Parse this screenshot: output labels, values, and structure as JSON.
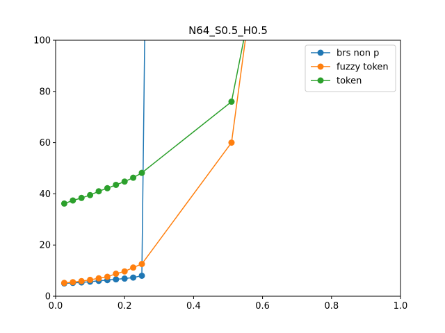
{
  "chart_data": {
    "type": "line",
    "title": "N64_S0.5_H0.5",
    "xlabel": "",
    "ylabel": "",
    "xlim": [
      0,
      1
    ],
    "ylim": [
      0,
      100
    ],
    "xticks": [
      "0.0",
      "0.2",
      "0.4",
      "0.6",
      "0.8",
      "1.0"
    ],
    "yticks": [
      "0",
      "20",
      "40",
      "60",
      "80",
      "100"
    ],
    "grid": false,
    "legend_position": "top-right",
    "series": [
      {
        "name": "brs non p",
        "color": "#1f77b4",
        "x": [
          0.025,
          0.05,
          0.075,
          0.1,
          0.125,
          0.15,
          0.175,
          0.2,
          0.225,
          0.25,
          0.26
        ],
        "y": [
          5.0,
          5.2,
          5.4,
          5.7,
          6.0,
          6.3,
          6.6,
          6.9,
          7.3,
          8.0,
          120.0
        ]
      },
      {
        "name": "fuzzy token",
        "color": "#ff7f0e",
        "x": [
          0.025,
          0.05,
          0.075,
          0.1,
          0.125,
          0.15,
          0.175,
          0.2,
          0.225,
          0.25,
          0.51,
          0.56
        ],
        "y": [
          5.2,
          5.5,
          5.9,
          6.4,
          7.0,
          7.6,
          8.8,
          9.7,
          11.2,
          12.6,
          60.0,
          110.0
        ]
      },
      {
        "name": "token",
        "color": "#2ca02c",
        "x": [
          0.025,
          0.05,
          0.075,
          0.1,
          0.125,
          0.15,
          0.175,
          0.2,
          0.225,
          0.25,
          0.51,
          0.56
        ],
        "y": [
          36.2,
          37.4,
          38.4,
          39.5,
          41.0,
          42.2,
          43.5,
          44.8,
          46.3,
          48.2,
          76.0,
          110.0
        ]
      }
    ]
  }
}
